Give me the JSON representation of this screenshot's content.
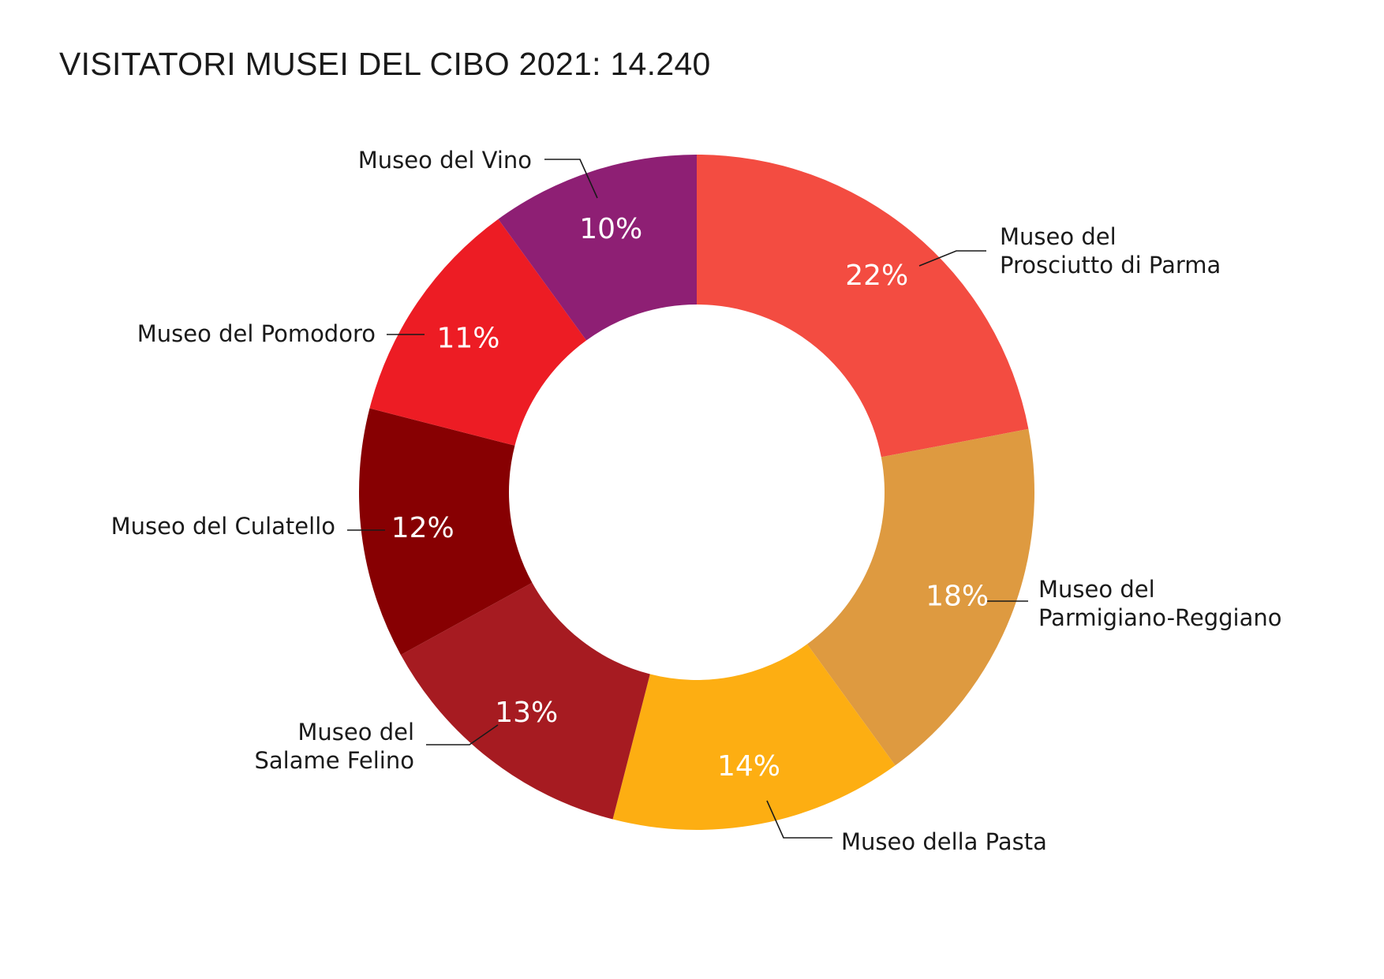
{
  "chart_data": {
    "type": "pie",
    "title": "VISITATORI MUSEI DEL CIBO 2021: 14.240",
    "slices": [
      {
        "name": [
          "Museo del",
          "Prosciutto di Parma"
        ],
        "value": 22,
        "value_label": "22%",
        "color": "#f34c41"
      },
      {
        "name": [
          "Museo del",
          "Parmigiano-Reggiano"
        ],
        "value": 18,
        "value_label": "18%",
        "color": "#de9a40"
      },
      {
        "name": [
          "Museo della Pasta"
        ],
        "value": 14,
        "value_label": "14%",
        "color": "#fdae12"
      },
      {
        "name": [
          "Museo del",
          "Salame Felino"
        ],
        "value": 13,
        "value_label": "13%",
        "color": "#a61b21"
      },
      {
        "name": [
          "Museo del Culatello"
        ],
        "value": 12,
        "value_label": "12%",
        "color": "#870002"
      },
      {
        "name": [
          "Museo del Pomodoro"
        ],
        "value": 11,
        "value_label": "11%",
        "color": "#ed1c24"
      },
      {
        "name": [
          "Museo del Vino"
        ],
        "value": 10,
        "value_label": "10%",
        "color": "#8e1f74"
      }
    ]
  }
}
